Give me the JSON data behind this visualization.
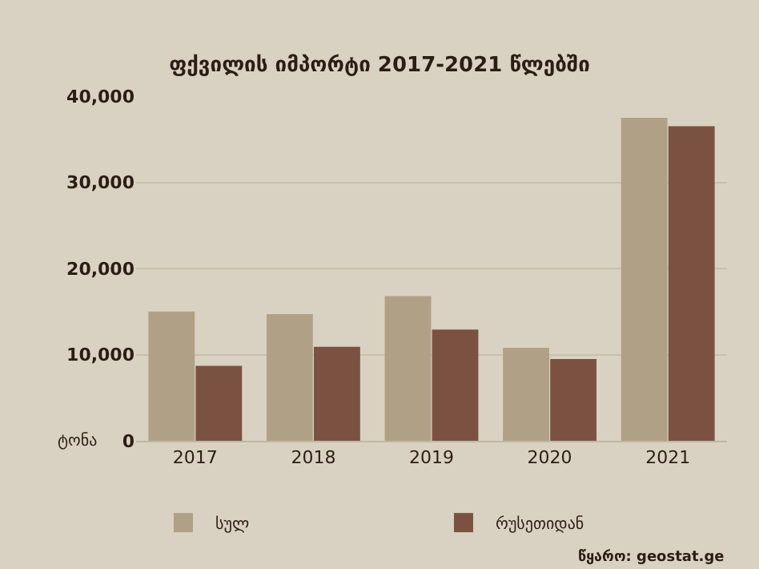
{
  "chart_data": {
    "type": "bar",
    "title": "ფქვილის იმპორტი 2017-2021 წლებში",
    "ylabel": "ტონა",
    "categories": [
      "2017",
      "2018",
      "2019",
      "2020",
      "2021"
    ],
    "series": [
      {
        "name": "სულ",
        "color": "#b0a186",
        "values": [
          15000,
          14700,
          16800,
          10800,
          37500
        ]
      },
      {
        "name": "რუსეთიდან",
        "color": "#7b5241",
        "values": [
          8700,
          10900,
          12900,
          9500,
          36500
        ]
      }
    ],
    "ylim": [
      0,
      40000
    ],
    "yticks": [
      {
        "value": 0,
        "label": "0"
      },
      {
        "value": 10000,
        "label": "10,000"
      },
      {
        "value": 20000,
        "label": "20,000"
      },
      {
        "value": 30000,
        "label": "30,000"
      },
      {
        "value": 40000,
        "label": "40,000"
      }
    ],
    "grid": "y",
    "legend": "bottom",
    "annotations": [
      "წყარო: geostat.ge"
    ]
  }
}
